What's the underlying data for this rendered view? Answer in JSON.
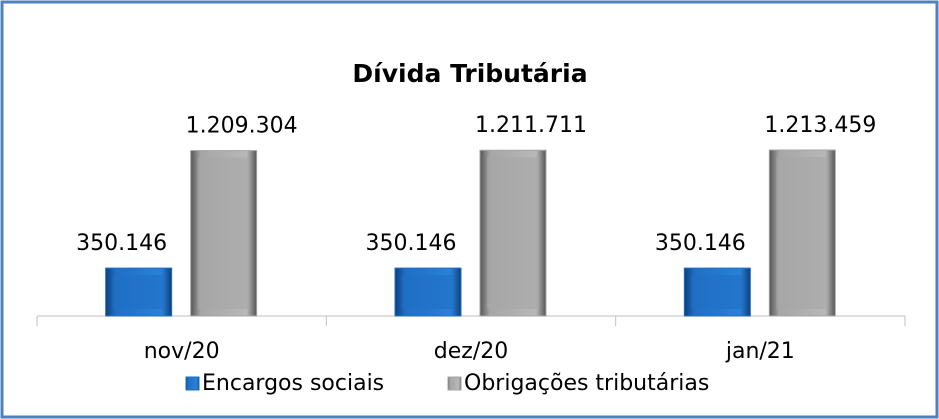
{
  "chart_data": {
    "type": "bar",
    "title": "Dívida Tributária",
    "categories": [
      "nov/20",
      "dez/20",
      "jan/21"
    ],
    "series": [
      {
        "name": "Encargos sociais",
        "color": "#1f6fc5",
        "values": [
          350146,
          350146,
          350146
        ],
        "value_labels": [
          "350.146",
          "350.146",
          "350.146"
        ]
      },
      {
        "name": "Obrigações tributárias",
        "color": "#a6a6a6",
        "values": [
          1209304,
          1211711,
          1213459
        ],
        "value_labels": [
          "1.209.304",
          "1.211.711",
          "1.213.459"
        ]
      }
    ],
    "legend": "bottom"
  }
}
